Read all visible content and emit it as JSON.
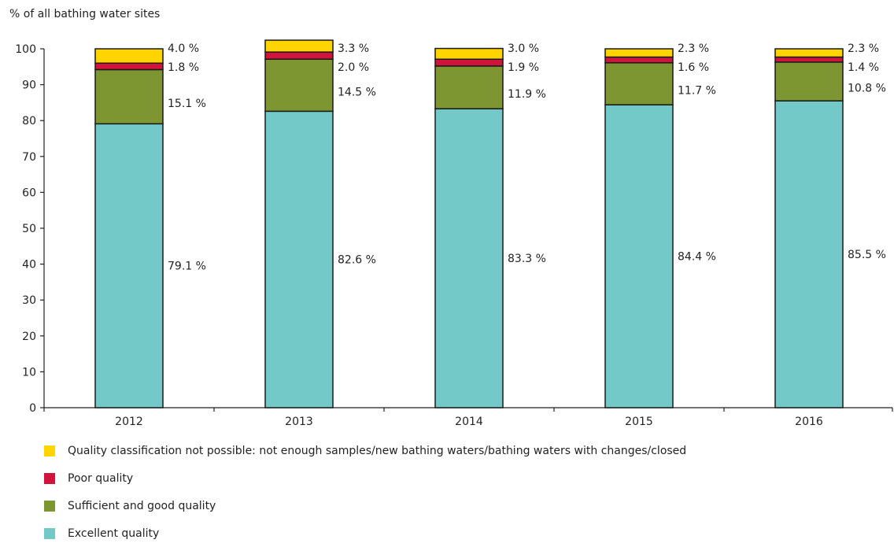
{
  "chart_data": {
    "type": "bar",
    "stacked": true,
    "ylabel": "% of all bathing water sites",
    "ylim": [
      0,
      100
    ],
    "yticks": [
      "0",
      "10",
      "20",
      "30",
      "40",
      "50",
      "60",
      "70",
      "80",
      "90",
      "100"
    ],
    "categories": [
      "2012",
      "2013",
      "2014",
      "2015",
      "2016"
    ],
    "series": [
      {
        "name": "Excellent quality",
        "color": "#72c9c8",
        "values": [
          79.1,
          82.6,
          83.3,
          84.4,
          85.5
        ],
        "labels": [
          "79.1 %",
          "82.6 %",
          "83.3 %",
          "84.4 %",
          "85.5 %"
        ]
      },
      {
        "name": "Sufficient and good quality",
        "color": "#7e9632",
        "values": [
          15.1,
          14.5,
          11.9,
          11.7,
          10.8
        ],
        "labels": [
          "15.1 %",
          "14.5 %",
          "11.9 %",
          "11.7 %",
          "10.8 %"
        ]
      },
      {
        "name": "Poor quality",
        "color": "#d0143c",
        "values": [
          1.8,
          2.0,
          1.9,
          1.6,
          1.4
        ],
        "labels": [
          "1.8 %",
          "2.0 %",
          "1.9 %",
          "1.6 %",
          "1.4 %"
        ]
      },
      {
        "name": "Quality classification not possible: not enough samples/new bathing waters/bathing waters with changes/closed",
        "color": "#ffd400",
        "values": [
          4.0,
          3.3,
          3.0,
          2.3,
          2.3
        ],
        "labels": [
          "4.0 %",
          "3.3 %",
          "3.0 %",
          "2.3 %",
          "2.3 %"
        ]
      }
    ],
    "legend_order": [
      3,
      2,
      1,
      0
    ]
  }
}
